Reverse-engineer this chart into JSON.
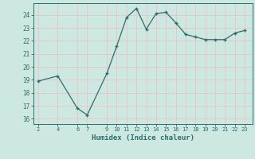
{
  "x": [
    2,
    4,
    6,
    7,
    9,
    10,
    11,
    12,
    13,
    14,
    15,
    16,
    17,
    18,
    19,
    20,
    21,
    22,
    23
  ],
  "y": [
    18.9,
    19.3,
    16.8,
    16.3,
    19.5,
    21.6,
    23.8,
    24.5,
    22.9,
    24.1,
    24.2,
    23.4,
    22.5,
    22.3,
    22.1,
    22.1,
    22.1,
    22.6,
    22.8
  ],
  "xticks": [
    2,
    4,
    6,
    7,
    9,
    10,
    11,
    12,
    13,
    14,
    15,
    16,
    17,
    18,
    19,
    20,
    21,
    22,
    23
  ],
  "yticks": [
    16,
    17,
    18,
    19,
    20,
    21,
    22,
    23,
    24
  ],
  "xlabel": "Humidex (Indice chaleur)",
  "ylim": [
    15.6,
    24.9
  ],
  "xlim": [
    1.5,
    23.8
  ],
  "line_color": "#2d6e6e",
  "marker": "+",
  "bg_color": "#cce8e0",
  "grid_color": "#e8c8c8",
  "tick_color": "#2d6e6e",
  "label_color": "#2d6e6e"
}
